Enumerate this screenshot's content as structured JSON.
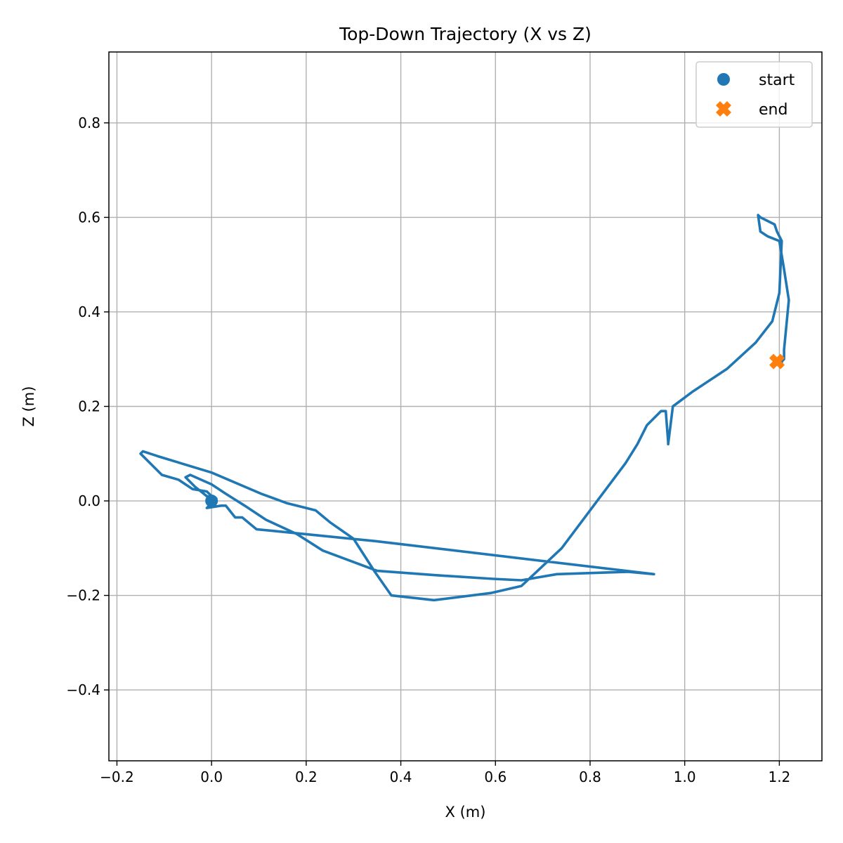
{
  "chart_data": {
    "type": "line",
    "title": "Top-Down Trajectory (X vs Z)",
    "xlabel": "X (m)",
    "ylabel": "Z (m)",
    "xlim": [
      -0.217,
      1.29
    ],
    "ylim": [
      -0.55,
      0.95
    ],
    "xticks": [
      -0.2,
      0.0,
      0.2,
      0.4,
      0.6,
      0.8,
      1.0,
      1.2
    ],
    "xtick_labels": [
      "−0.2",
      "0.0",
      "0.2",
      "0.4",
      "0.6",
      "0.8",
      "1.0",
      "1.2"
    ],
    "yticks": [
      -0.4,
      -0.2,
      0.0,
      0.2,
      0.4,
      0.6,
      0.8
    ],
    "ytick_labels": [
      "−0.4",
      "−0.2",
      "0.0",
      "0.2",
      "0.4",
      "0.6",
      "0.8"
    ],
    "grid": true,
    "legend_position": "top-right",
    "colors": {
      "path": "#1f77b4",
      "start": "#1f77b4",
      "end": "#ff7f0e",
      "grid": "#b0b0b0"
    },
    "series": [
      {
        "name": "",
        "type": "line",
        "x": [
          0.0,
          0.01,
          -0.01,
          0.02,
          0.03,
          0.05,
          0.065,
          0.095,
          0.345,
          0.935,
          0.88,
          0.73,
          0.655,
          0.595,
          0.47,
          0.35,
          0.235,
          0.18,
          0.115,
          0.07,
          0.03,
          0.0,
          -0.045,
          -0.055,
          -0.05,
          -0.035,
          -0.01,
          0.01,
          0.0,
          -0.01,
          -0.04,
          -0.07,
          -0.105,
          -0.125,
          -0.15,
          -0.145,
          -0.115,
          0.0,
          0.105,
          0.16,
          0.22,
          0.25,
          0.3,
          0.345,
          0.38,
          0.47,
          0.59,
          0.655,
          0.74,
          0.875,
          0.9,
          0.92,
          0.95,
          0.96,
          0.965,
          0.965,
          0.975,
          1.015,
          1.09,
          1.15,
          1.185,
          1.2,
          1.205,
          1.195,
          1.19,
          1.16,
          1.155,
          1.16,
          1.175,
          1.2,
          1.21,
          1.22,
          1.21,
          1.21,
          1.205,
          1.205
        ],
        "y": [
          0.005,
          0.005,
          -0.015,
          -0.01,
          -0.01,
          -0.035,
          -0.035,
          -0.06,
          -0.085,
          -0.155,
          -0.15,
          -0.155,
          -0.168,
          -0.165,
          -0.157,
          -0.148,
          -0.105,
          -0.07,
          -0.04,
          -0.01,
          0.015,
          0.035,
          0.055,
          0.05,
          0.045,
          0.03,
          0.01,
          0.005,
          0.01,
          0.02,
          0.025,
          0.045,
          0.055,
          0.075,
          0.1,
          0.105,
          0.095,
          0.06,
          0.015,
          -0.005,
          -0.02,
          -0.045,
          -0.08,
          -0.15,
          -0.2,
          -0.21,
          -0.195,
          -0.18,
          -0.1,
          0.08,
          0.12,
          0.16,
          0.19,
          0.19,
          0.125,
          0.12,
          0.2,
          0.23,
          0.28,
          0.335,
          0.38,
          0.44,
          0.55,
          0.57,
          0.585,
          0.6,
          0.605,
          0.57,
          0.56,
          0.55,
          0.49,
          0.425,
          0.32,
          0.3,
          0.295,
          0.29
        ]
      }
    ],
    "markers": [
      {
        "name": "start",
        "shape": "circle",
        "x": 0.0,
        "y": 0.0
      },
      {
        "name": "end",
        "shape": "x",
        "x": 1.195,
        "y": 0.295
      }
    ],
    "legend": [
      {
        "label": "start",
        "shape": "circle"
      },
      {
        "label": "end",
        "shape": "x"
      }
    ]
  }
}
